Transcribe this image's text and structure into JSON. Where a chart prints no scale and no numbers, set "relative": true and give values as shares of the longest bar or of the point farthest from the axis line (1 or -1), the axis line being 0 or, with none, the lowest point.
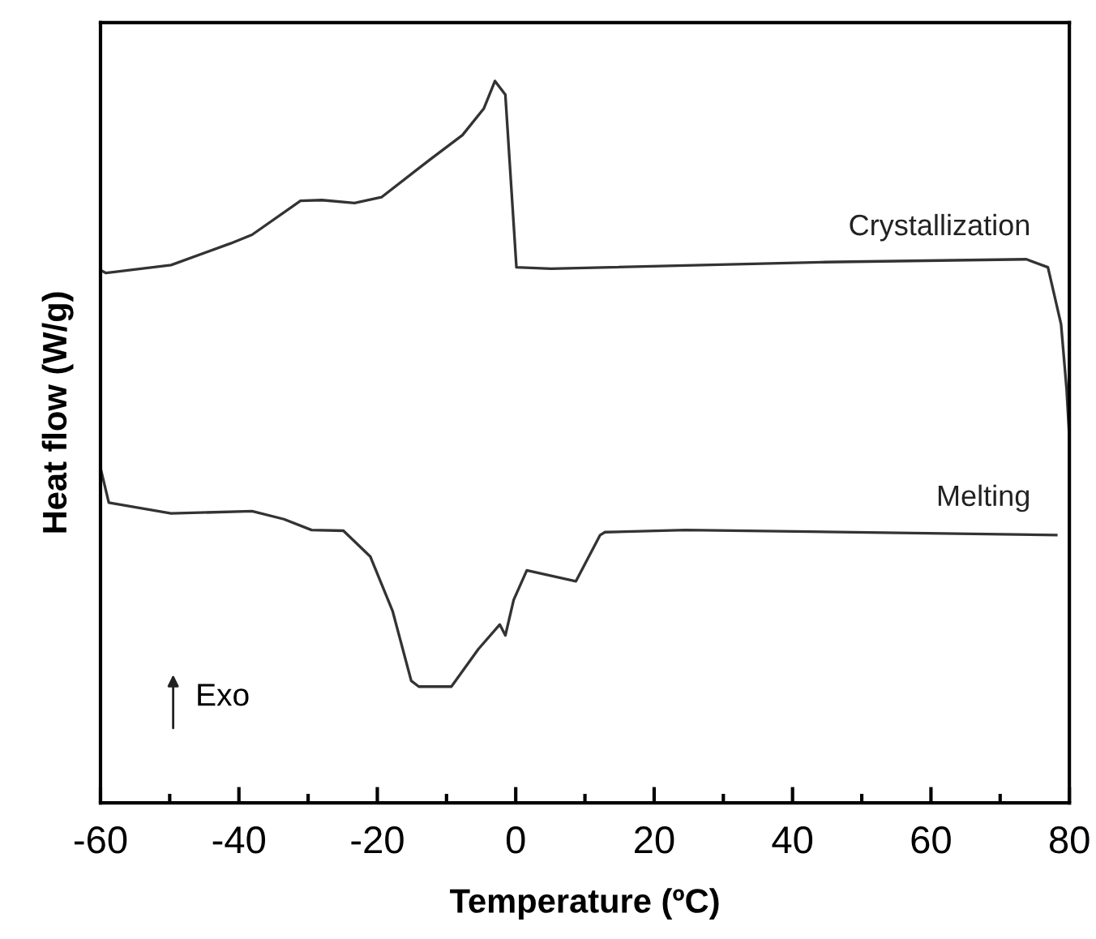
{
  "chart_data": {
    "type": "line",
    "relative": true,
    "xlabel": "Temperature (ºC)",
    "ylabel": "Heat flow (W/g)",
    "xlim": [
      -60,
      80
    ],
    "xticks": [
      -60,
      {
        "value": -50,
        "label": null
      },
      -40,
      {
        "value": -30,
        "label": null
      },
      -20,
      {
        "value": -10,
        "label": null
      },
      0,
      {
        "value": 10,
        "label": null
      },
      20,
      {
        "value": 30,
        "label": null
      },
      40,
      {
        "value": 50,
        "label": null
      },
      60,
      {
        "value": 70,
        "label": null
      },
      80
    ],
    "grid": false,
    "marker": "none",
    "line_style": "solid",
    "annotations": [
      "Exo"
    ],
    "series": [
      {
        "name": "Crystallization",
        "color": "#333333",
        "x": [
          -60,
          -59.2,
          -49.8,
          -41.2,
          -38.1,
          -31.1,
          -28.0,
          -23.3,
          -19.4,
          -12.4,
          -7.7,
          -4.6,
          -3.0,
          -1.5,
          0.1,
          5.1,
          44.1,
          73.8,
          76.9,
          78.8,
          79.6,
          80
        ],
        "values": [
          0.738,
          0.734,
          0.745,
          0.775,
          0.787,
          0.834,
          0.835,
          0.831,
          0.839,
          0.891,
          0.925,
          0.962,
          1.0,
          0.981,
          0.742,
          0.74,
          0.749,
          0.753,
          0.742,
          0.663,
          0.573,
          0.506
        ]
      },
      {
        "name": "Melting",
        "color": "#333333",
        "x": [
          -60,
          -58.8,
          -49.8,
          -38.1,
          -33.5,
          -29.5,
          -24.9,
          -21.0,
          -17.8,
          -15.1,
          -14.0,
          -9.3,
          -5.4,
          -2.3,
          -1.5,
          -0.3,
          1.6,
          8.7,
          12.2,
          12.9,
          24.6,
          78.1
        ],
        "values": [
          0.464,
          0.416,
          0.401,
          0.404,
          0.393,
          0.378,
          0.377,
          0.341,
          0.266,
          0.169,
          0.161,
          0.161,
          0.213,
          0.247,
          0.232,
          0.281,
          0.322,
          0.307,
          0.371,
          0.375,
          0.378,
          0.371
        ]
      }
    ]
  }
}
